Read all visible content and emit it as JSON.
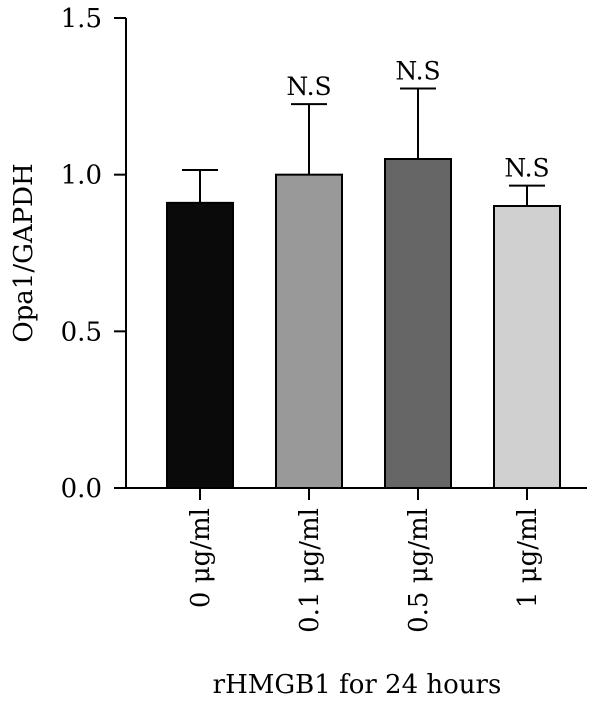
{
  "chart_data": {
    "type": "bar",
    "title": "",
    "xlabel": "rHMGB1 for 24 hours",
    "ylabel": "Opa1/GAPDH",
    "ylim": [
      0,
      1.5
    ],
    "yticks": [
      "0.0",
      "0.5",
      "1.0",
      "1.5"
    ],
    "ytick_values": [
      0,
      0.5,
      1.0,
      1.5
    ],
    "categories": [
      "0 μg/ml",
      "0.1 μg/ml",
      "0.5 μg/ml",
      "1 μg/ml"
    ],
    "values": [
      0.91,
      1.0,
      1.05,
      0.9
    ],
    "error_upper": [
      0.105,
      0.225,
      0.225,
      0.065
    ],
    "significance": [
      "",
      "N.S",
      "N.S",
      "N.S"
    ],
    "bar_colors": [
      "#0a0a0a",
      "#999999",
      "#666666",
      "#d0d0d0"
    ],
    "grid": false
  }
}
